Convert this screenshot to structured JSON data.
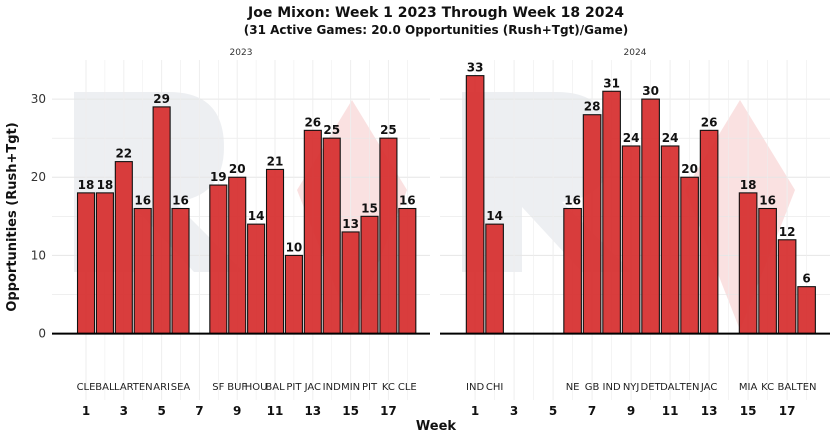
{
  "chart_data": {
    "type": "bar",
    "title": "Joe Mixon: Week 1 2023 Through Week 18 2024",
    "subtitle": "(31 Active Games: 20.0 Opportunities (Rush+Tgt)/Game)",
    "xlabel": "Week",
    "ylabel": "Opportunities (Rush+Tgt)",
    "ylim": [
      -8.5,
      35
    ],
    "y_ticks": [
      0,
      10,
      20,
      30
    ],
    "x_ticks": [
      1,
      3,
      5,
      7,
      9,
      11,
      13,
      15,
      17
    ],
    "xlim": [
      -0.8,
      19.2
    ],
    "bar_color": "#d62e2e",
    "grid": true,
    "facets": [
      {
        "label": "2023",
        "bars": [
          {
            "week": 1,
            "opponent": "CLE",
            "value": 18
          },
          {
            "week": 2,
            "opponent": "BAL",
            "value": 18
          },
          {
            "week": 3,
            "opponent": "LAR",
            "value": 22
          },
          {
            "week": 4,
            "opponent": "TEN",
            "value": 16
          },
          {
            "week": 5,
            "opponent": "ARI",
            "value": 29
          },
          {
            "week": 6,
            "opponent": "SEA",
            "value": 16
          },
          {
            "week": 8,
            "opponent": "SF",
            "value": 19
          },
          {
            "week": 9,
            "opponent": "BUF",
            "value": 20
          },
          {
            "week": 10,
            "opponent": "HOU",
            "value": 14
          },
          {
            "week": 11,
            "opponent": "BAL",
            "value": 21
          },
          {
            "week": 12,
            "opponent": "PIT",
            "value": 10
          },
          {
            "week": 13,
            "opponent": "JAC",
            "value": 26
          },
          {
            "week": 14,
            "opponent": "IND",
            "value": 25
          },
          {
            "week": 15,
            "opponent": "MIN",
            "value": 13
          },
          {
            "week": 16,
            "opponent": "PIT",
            "value": 15
          },
          {
            "week": 17,
            "opponent": "KC",
            "value": 25
          },
          {
            "week": 18,
            "opponent": "CLE",
            "value": 16
          }
        ]
      },
      {
        "label": "2024",
        "bars": [
          {
            "week": 1,
            "opponent": "IND",
            "value": 33
          },
          {
            "week": 2,
            "opponent": "CHI",
            "value": 14
          },
          {
            "week": 6,
            "opponent": "NE",
            "value": 16
          },
          {
            "week": 7,
            "opponent": "GB",
            "value": 28
          },
          {
            "week": 8,
            "opponent": "IND",
            "value": 31
          },
          {
            "week": 9,
            "opponent": "NYJ",
            "value": 24
          },
          {
            "week": 10,
            "opponent": "DET",
            "value": 30
          },
          {
            "week": 11,
            "opponent": "DAL",
            "value": 24
          },
          {
            "week": 12,
            "opponent": "TEN",
            "value": 20
          },
          {
            "week": 13,
            "opponent": "JAC",
            "value": 26
          },
          {
            "week": 15,
            "opponent": "MIA",
            "value": 18
          },
          {
            "week": 16,
            "opponent": "KC",
            "value": 16
          },
          {
            "week": 17,
            "opponent": "BAL",
            "value": 12
          },
          {
            "week": 18,
            "opponent": "TEN",
            "value": 6
          }
        ]
      }
    ]
  }
}
